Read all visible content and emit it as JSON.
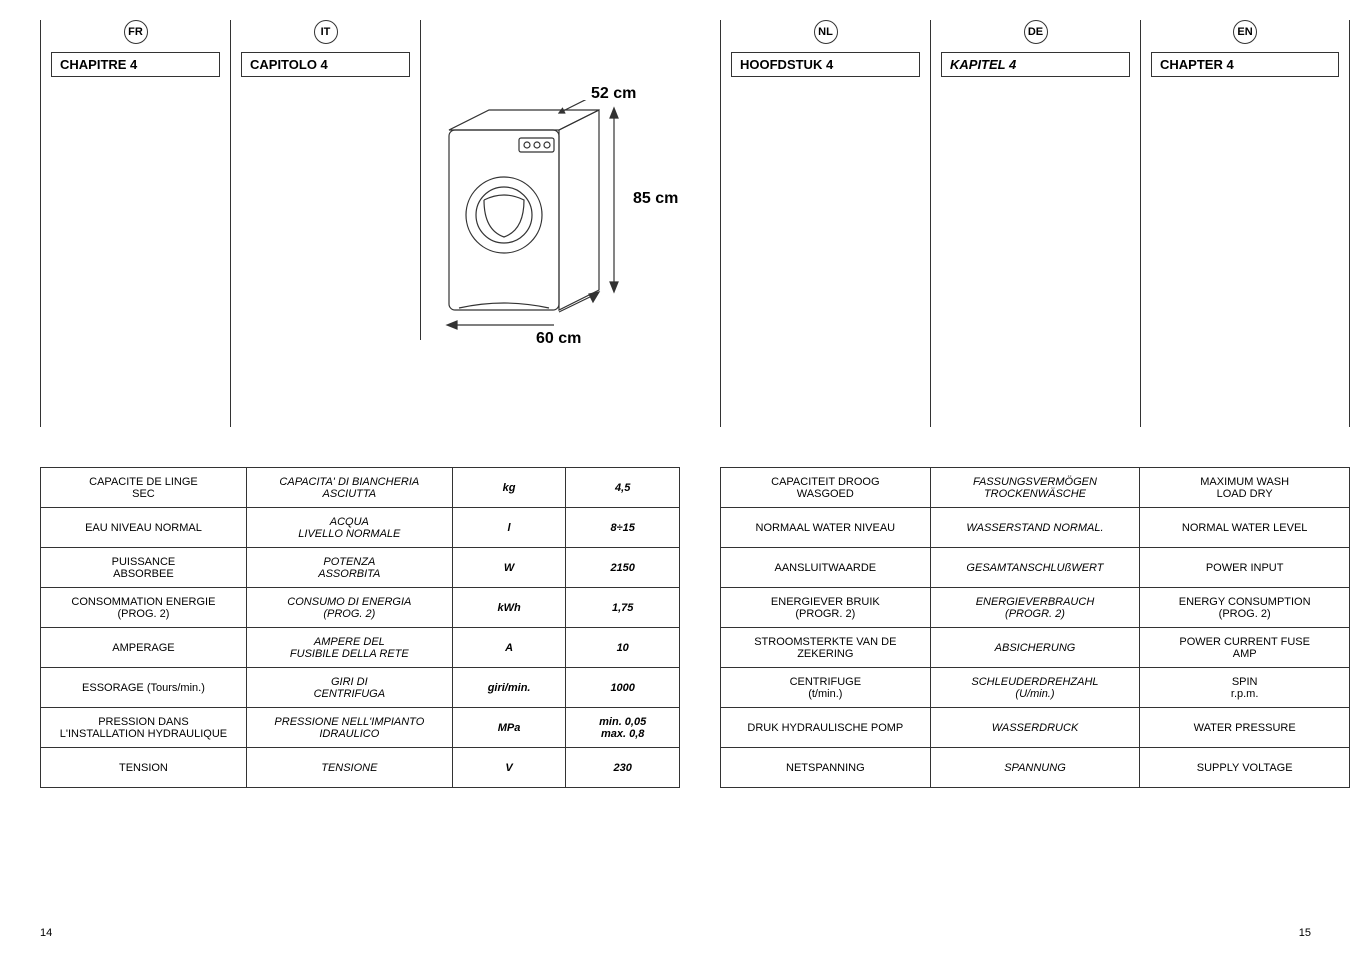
{
  "left": {
    "chapters": [
      {
        "lang": "FR",
        "title": "CHAPITRE 4"
      },
      {
        "lang": "IT",
        "title": "CAPITOLO 4"
      }
    ],
    "dimensions": {
      "width_top": "52 cm",
      "height": "85 cm",
      "width_bottom": "60 cm"
    },
    "table": [
      {
        "fr": "CAPACITE DE LINGE\nSEC",
        "it": "CAPACITA' DI BIANCHERIA\nASCIUTTA",
        "unit": "kg",
        "value": "4,5"
      },
      {
        "fr": "EAU NIVEAU NORMAL",
        "it": "ACQUA\nLIVELLO NORMALE",
        "unit": "l",
        "value": "8÷15"
      },
      {
        "fr": "PUISSANCE\nABSORBEE",
        "it": "POTENZA\nASSORBITA",
        "unit": "W",
        "value": "2150"
      },
      {
        "fr": "CONSOMMATION ENERGIE\n(PROG. 2)",
        "it": "CONSUMO DI ENERGIA\n(PROG. 2)",
        "unit": "kWh",
        "value": "1,75"
      },
      {
        "fr": "AMPERAGE",
        "it": "AMPERE DEL\nFUSIBILE DELLA RETE",
        "unit": "A",
        "value": "10"
      },
      {
        "fr": "ESSORAGE (Tours/min.)",
        "it": "GIRI DI\nCENTRIFUGA",
        "unit": "giri/min.",
        "value": "1000"
      },
      {
        "fr": "PRESSION DANS\nL'INSTALLATION HYDRAULIQUE",
        "it": "PRESSIONE NELL'IMPIANTO\nIDRAULICO",
        "unit": "MPa",
        "value": "min. 0,05\nmax. 0,8"
      },
      {
        "fr": "TENSION",
        "it": "TENSIONE",
        "unit": "V",
        "value": "230"
      }
    ],
    "page_number": "14"
  },
  "right": {
    "chapters": [
      {
        "lang": "NL",
        "title": "HOOFDSTUK 4",
        "italic": false
      },
      {
        "lang": "DE",
        "title": "KAPITEL 4",
        "italic": true
      },
      {
        "lang": "EN",
        "title": "CHAPTER 4",
        "italic": false
      }
    ],
    "table": [
      {
        "nl": "CAPACITEIT DROOG\nWASGOED",
        "de": "FASSUNGSVERMÖGEN\nTROCKENWÄSCHE",
        "en": "MAXIMUM WASH\nLOAD DRY"
      },
      {
        "nl": "NORMAAL WATER NIVEAU",
        "de": "WASSERSTAND NORMAL.",
        "en": "NORMAL WATER LEVEL"
      },
      {
        "nl": "AANSLUITWAARDE",
        "de": "GESAMTANSCHLUßWERT",
        "en": "POWER INPUT"
      },
      {
        "nl": "ENERGIEVER BRUIK\n(PROGR. 2)",
        "de": "ENERGIEVERBRAUCH\n(PROGR. 2)",
        "en": "ENERGY CONSUMPTION\n(PROG. 2)"
      },
      {
        "nl": "STROOMSTERKTE VAN DE\nZEKERING",
        "de": "ABSICHERUNG",
        "en": "POWER CURRENT FUSE\nAMP"
      },
      {
        "nl": "CENTRIFUGE\n(t/min.)",
        "de": "SCHLEUDERDREHZAHL\n(U/min.)",
        "en": "SPIN\nr.p.m."
      },
      {
        "nl": "DRUK HYDRAULISCHE POMP",
        "de": "WASSERDRUCK",
        "en": "WATER PRESSURE"
      },
      {
        "nl": "NETSPANNING",
        "de": "SPANNUNG",
        "en": "SUPPLY VOLTAGE"
      }
    ],
    "page_number": "15"
  }
}
